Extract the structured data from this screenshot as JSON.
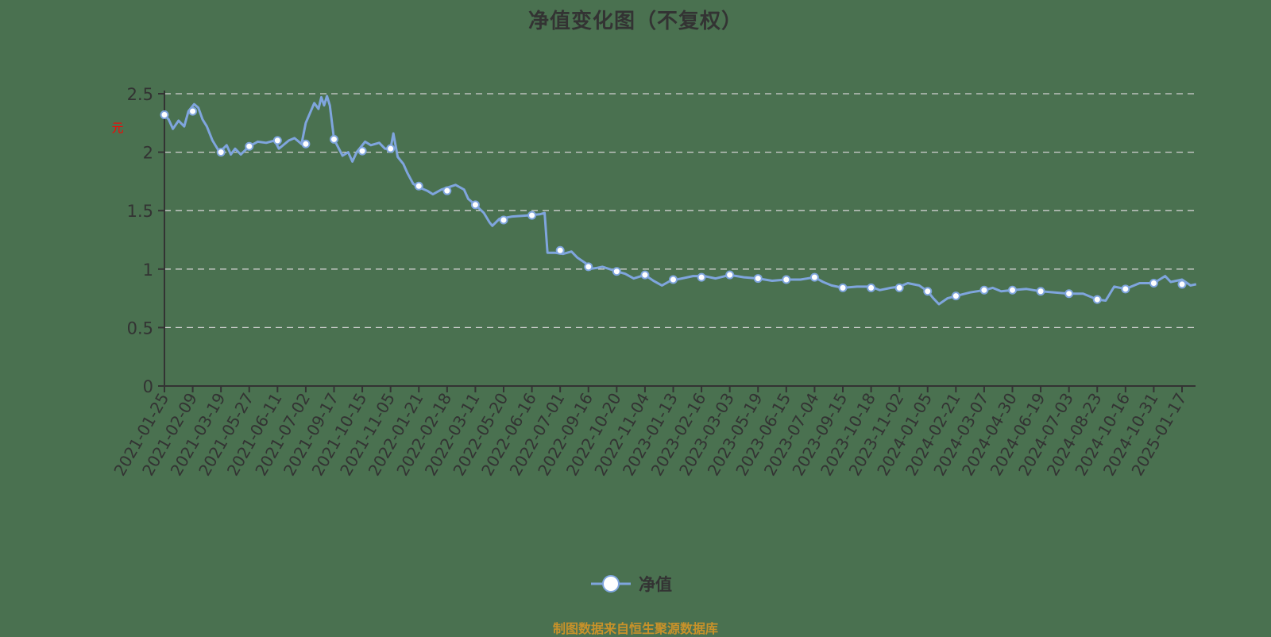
{
  "title": "净值变化图（不复权）",
  "y_axis_unit_label": "元",
  "legend": {
    "label": "净值",
    "color": "#7fa5dd"
  },
  "source": "制图数据来自恒生聚源数据库",
  "colors": {
    "background": "#4a7150",
    "line": "#7fa5dd",
    "marker_fill": "#ffffff",
    "grid": "#d0d0d0",
    "axis": "#333333",
    "unit_label": "#ff0000",
    "source_text": "#c8922a"
  },
  "chart_data": {
    "type": "line",
    "title": "净值变化图（不复权）",
    "xlabel": "",
    "ylabel": "元",
    "ylim": [
      0,
      2.5
    ],
    "yticks": [
      0,
      0.5,
      1,
      1.5,
      2,
      2.5
    ],
    "ytick_labels": [
      "0",
      "0.5",
      "1",
      "1.5",
      "2",
      "2.5"
    ],
    "grid": true,
    "grid_style": "dashed horizontal",
    "legend_position": "bottom-center",
    "categories": [
      "2021-01-25",
      "2021-02-09",
      "2021-03-19",
      "2021-05-27",
      "2021-06-11",
      "2021-07-02",
      "2021-09-17",
      "2021-10-15",
      "2021-11-05",
      "2022-01-21",
      "2022-02-18",
      "2022-03-11",
      "2022-05-20",
      "2022-06-16",
      "2022-07-01",
      "2022-09-16",
      "2022-10-20",
      "2022-11-04",
      "2023-01-13",
      "2023-02-16",
      "2023-03-03",
      "2023-05-19",
      "2023-06-15",
      "2023-07-04",
      "2023-09-15",
      "2023-10-18",
      "2023-11-02",
      "2024-01-05",
      "2024-02-21",
      "2024-03-07",
      "2024-04-30",
      "2024-06-19",
      "2024-07-03",
      "2024-08-23",
      "2024-10-16",
      "2024-10-31",
      "2025-01-17"
    ],
    "series": [
      {
        "name": "净值",
        "marker_values": [
          2.32,
          2.35,
          2.0,
          2.05,
          2.1,
          2.07,
          2.11,
          2.01,
          2.03,
          1.71,
          1.67,
          1.55,
          1.42,
          1.46,
          1.16,
          1.02,
          0.98,
          0.95,
          0.91,
          0.93,
          0.95,
          0.92,
          0.91,
          0.93,
          0.84,
          0.84,
          0.84,
          0.81,
          0.77,
          0.82,
          0.82,
          0.81,
          0.79,
          0.74,
          0.83,
          0.88,
          0.87
        ],
        "line_points": [
          [
            0,
            2.32
          ],
          [
            0.15,
            2.28
          ],
          [
            0.3,
            2.2
          ],
          [
            0.5,
            2.27
          ],
          [
            0.7,
            2.22
          ],
          [
            0.85,
            2.35
          ],
          [
            1.05,
            2.41
          ],
          [
            1.2,
            2.38
          ],
          [
            1.35,
            2.28
          ],
          [
            1.5,
            2.22
          ],
          [
            1.7,
            2.1
          ],
          [
            1.95,
            2.0
          ],
          [
            2.2,
            2.06
          ],
          [
            2.35,
            1.98
          ],
          [
            2.5,
            2.03
          ],
          [
            2.7,
            1.98
          ],
          [
            3.0,
            2.05
          ],
          [
            3.3,
            2.09
          ],
          [
            3.6,
            2.08
          ],
          [
            3.9,
            2.1
          ],
          [
            4.05,
            2.03
          ],
          [
            4.4,
            2.1
          ],
          [
            4.6,
            2.12
          ],
          [
            4.85,
            2.07
          ],
          [
            5.0,
            2.25
          ],
          [
            5.3,
            2.42
          ],
          [
            5.45,
            2.37
          ],
          [
            5.55,
            2.47
          ],
          [
            5.65,
            2.4
          ],
          [
            5.75,
            2.48
          ],
          [
            5.85,
            2.4
          ],
          [
            6.0,
            2.11
          ],
          [
            6.3,
            1.97
          ],
          [
            6.5,
            2.0
          ],
          [
            6.65,
            1.92
          ],
          [
            6.8,
            2.0
          ],
          [
            7.1,
            2.09
          ],
          [
            7.3,
            2.06
          ],
          [
            7.6,
            2.08
          ],
          [
            7.8,
            2.03
          ],
          [
            8.0,
            2.03
          ],
          [
            8.1,
            2.16
          ],
          [
            8.25,
            1.96
          ],
          [
            8.45,
            1.9
          ],
          [
            8.6,
            1.82
          ],
          [
            8.8,
            1.73
          ],
          [
            9.0,
            1.7
          ],
          [
            9.3,
            1.67
          ],
          [
            9.5,
            1.64
          ],
          [
            9.8,
            1.68
          ],
          [
            10.3,
            1.72
          ],
          [
            10.6,
            1.68
          ],
          [
            10.75,
            1.6
          ],
          [
            11.0,
            1.55
          ],
          [
            11.3,
            1.48
          ],
          [
            11.5,
            1.4
          ],
          [
            11.6,
            1.37
          ],
          [
            11.85,
            1.43
          ],
          [
            12.3,
            1.45
          ],
          [
            12.9,
            1.46
          ],
          [
            13.3,
            1.47
          ],
          [
            13.45,
            1.48
          ],
          [
            13.55,
            1.14
          ],
          [
            13.8,
            1.14
          ],
          [
            14.1,
            1.13
          ],
          [
            14.4,
            1.15
          ],
          [
            14.6,
            1.1
          ],
          [
            14.9,
            1.05
          ],
          [
            15.0,
            1.0
          ],
          [
            15.3,
            1.01
          ],
          [
            15.5,
            1.02
          ],
          [
            16.0,
            0.98
          ],
          [
            16.3,
            0.96
          ],
          [
            16.6,
            0.92
          ],
          [
            17.0,
            0.95
          ],
          [
            17.3,
            0.9
          ],
          [
            17.6,
            0.86
          ],
          [
            17.9,
            0.9
          ],
          [
            18.3,
            0.92
          ],
          [
            18.7,
            0.94
          ],
          [
            19.1,
            0.94
          ],
          [
            19.5,
            0.92
          ],
          [
            20.0,
            0.95
          ],
          [
            20.5,
            0.93
          ],
          [
            21.0,
            0.92
          ],
          [
            21.5,
            0.9
          ],
          [
            22.0,
            0.91
          ],
          [
            22.5,
            0.91
          ],
          [
            23.0,
            0.93
          ],
          [
            23.3,
            0.89
          ],
          [
            23.6,
            0.86
          ],
          [
            24.0,
            0.84
          ],
          [
            24.5,
            0.85
          ],
          [
            25.0,
            0.85
          ],
          [
            25.3,
            0.82
          ],
          [
            25.7,
            0.84
          ],
          [
            26.0,
            0.85
          ],
          [
            26.3,
            0.88
          ],
          [
            26.7,
            0.86
          ],
          [
            27.0,
            0.81
          ],
          [
            27.2,
            0.75
          ],
          [
            27.4,
            0.7
          ],
          [
            27.7,
            0.75
          ],
          [
            28.0,
            0.77
          ],
          [
            28.5,
            0.8
          ],
          [
            29.0,
            0.82
          ],
          [
            29.3,
            0.84
          ],
          [
            29.6,
            0.81
          ],
          [
            30.0,
            0.82
          ],
          [
            30.5,
            0.83
          ],
          [
            31.0,
            0.81
          ],
          [
            31.5,
            0.8
          ],
          [
            32.0,
            0.79
          ],
          [
            32.5,
            0.79
          ],
          [
            33.0,
            0.74
          ],
          [
            33.3,
            0.73
          ],
          [
            33.6,
            0.85
          ],
          [
            34.0,
            0.83
          ],
          [
            34.5,
            0.88
          ],
          [
            35.0,
            0.88
          ],
          [
            35.4,
            0.94
          ],
          [
            35.6,
            0.89
          ],
          [
            36.0,
            0.91
          ],
          [
            36.3,
            0.86
          ],
          [
            36.5,
            0.87
          ]
        ]
      }
    ]
  }
}
